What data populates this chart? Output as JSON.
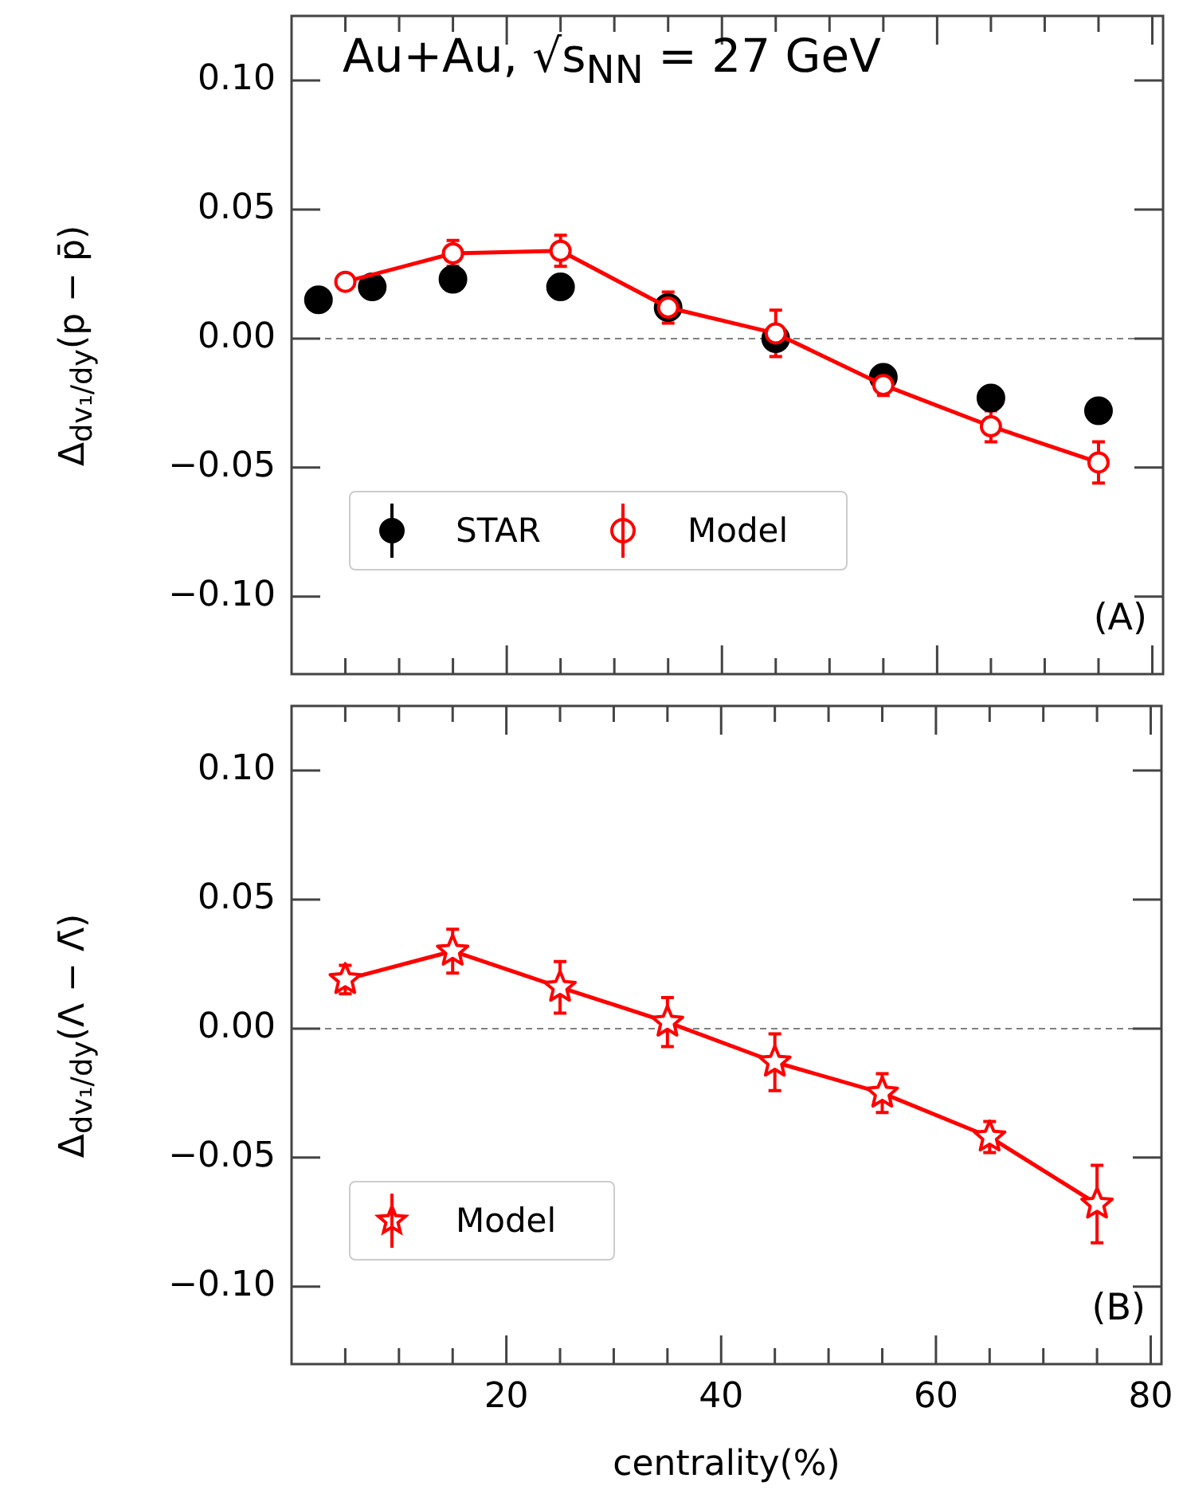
{
  "chart_data": [
    {
      "type": "line",
      "title": "Au+Au, √s$_{NN}$ = 27 GeV",
      "ylabel": "Δ$_{dv₁/dy}$(p − p̄)",
      "annotations": [
        "(A)"
      ],
      "xlim": [
        0,
        81
      ],
      "xticks": [
        {
          "value": 5,
          "label": null
        },
        {
          "value": 10,
          "label": null
        },
        {
          "value": 15,
          "label": null
        },
        20,
        {
          "value": 25,
          "label": null
        },
        {
          "value": 30,
          "label": null
        },
        {
          "value": 35,
          "label": null
        },
        40,
        {
          "value": 45,
          "label": null
        },
        {
          "value": 50,
          "label": null
        },
        {
          "value": 55,
          "label": null
        },
        60,
        {
          "value": 65,
          "label": null
        },
        {
          "value": 70,
          "label": null
        },
        {
          "value": 75,
          "label": null
        },
        80
      ],
      "ylim": [
        -0.13,
        0.125
      ],
      "yticks": [
        {
          "value": -0.1,
          "label": "−0.10"
        },
        {
          "value": -0.05,
          "label": "−0.05"
        },
        {
          "value": 0,
          "label": "0.00"
        },
        {
          "value": 0.05,
          "label": "0.05"
        },
        {
          "value": 0.1,
          "label": "0.10"
        }
      ],
      "tick_labels": "y",
      "legend": "bottom left",
      "ref_lines": [
        {
          "axis": "y",
          "value": 0,
          "color": "#808080",
          "line_style": "dashed"
        }
      ],
      "series": [
        {
          "name": "STAR",
          "type": "scatter",
          "color": "#000000",
          "marker": "circle",
          "x": [
            2.5,
            7.5,
            15,
            25,
            35,
            45,
            55,
            65,
            75
          ],
          "values": [
            0.015,
            0.02,
            0.023,
            0.02,
            0.012,
            0.0,
            -0.015,
            -0.023,
            -0.028
          ]
        },
        {
          "name": "Model",
          "type": "line",
          "color": "#ff0000",
          "marker": "circle",
          "line_style": "solid",
          "x": [
            5,
            15,
            25,
            35,
            45,
            55,
            65,
            75
          ],
          "values": [
            0.022,
            0.033,
            0.034,
            0.012,
            0.002,
            -0.018,
            -0.034,
            -0.048
          ],
          "errors": [
            null,
            0.005,
            0.006,
            0.006,
            0.009,
            0.004,
            0.006,
            0.008
          ]
        }
      ]
    },
    {
      "type": "line",
      "ylabel": "Δ$_{dv₁/dy}$(Λ − Λ̄)",
      "xlabel": "centrality(%)",
      "annotations": [
        "(B)"
      ],
      "xlim": [
        0,
        81
      ],
      "xticks": [
        {
          "value": 5,
          "label": null
        },
        {
          "value": 10,
          "label": null
        },
        {
          "value": 15,
          "label": null
        },
        20,
        {
          "value": 25,
          "label": null
        },
        {
          "value": 30,
          "label": null
        },
        {
          "value": 35,
          "label": null
        },
        40,
        {
          "value": 45,
          "label": null
        },
        {
          "value": 50,
          "label": null
        },
        {
          "value": 55,
          "label": null
        },
        60,
        {
          "value": 65,
          "label": null
        },
        {
          "value": 70,
          "label": null
        },
        {
          "value": 75,
          "label": null
        },
        80
      ],
      "ylim": [
        -0.13,
        0.125
      ],
      "yticks": [
        {
          "value": -0.1,
          "label": "−0.10"
        },
        {
          "value": -0.05,
          "label": "−0.05"
        },
        {
          "value": 0,
          "label": "0.00"
        },
        {
          "value": 0.05,
          "label": "0.05"
        },
        {
          "value": 0.1,
          "label": "0.10"
        }
      ],
      "legend": "bottom left",
      "ref_lines": [
        {
          "axis": "y",
          "value": 0,
          "color": "#808080",
          "line_style": "dashed"
        }
      ],
      "series": [
        {
          "name": "Model",
          "type": "line",
          "color": "#ff0000",
          "marker": "star",
          "line_style": "solid",
          "x": [
            5,
            15,
            25,
            35,
            45,
            55,
            65,
            75
          ],
          "values": [
            0.019,
            0.03,
            0.016,
            0.0025,
            -0.013,
            -0.025,
            -0.042,
            -0.068
          ],
          "errors": [
            0.0055,
            0.0085,
            0.01,
            0.0095,
            0.011,
            0.0075,
            0.006,
            0.015
          ]
        }
      ]
    }
  ]
}
